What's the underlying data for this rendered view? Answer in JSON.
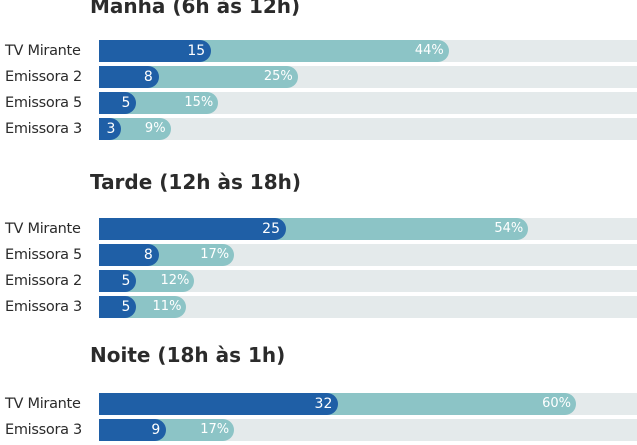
{
  "source_note": "",
  "chart_data": [
    {
      "type": "bar",
      "orientation": "horizontal",
      "title": "Manhã (6h às 12h)",
      "categories": [
        "TV Mirante",
        "Emissora 2",
        "Emissora 5",
        "Emissora 3"
      ],
      "series": [
        {
          "values": [
            15,
            8,
            5,
            3
          ]
        },
        {
          "values": [
            44,
            25,
            15,
            9
          ],
          "unit": "%"
        }
      ],
      "colors": {
        "value_bar": "#1f5fa6",
        "percent_bar": "#8cc4c6",
        "track": "#e4eaeb"
      }
    },
    {
      "type": "bar",
      "orientation": "horizontal",
      "title": "Tarde (12h às 18h)",
      "categories": [
        "TV Mirante",
        "Emissora 5",
        "Emissora 2",
        "Emissora 3"
      ],
      "series": [
        {
          "values": [
            25,
            8,
            5,
            5
          ]
        },
        {
          "values": [
            54,
            17,
            12,
            11
          ],
          "unit": "%"
        }
      ],
      "colors": {
        "value_bar": "#1f5fa6",
        "percent_bar": "#8cc4c6",
        "track": "#e4eaeb"
      }
    },
    {
      "type": "bar",
      "orientation": "horizontal",
      "title": "Noite (18h às 1h)",
      "categories": [
        "TV Mirante",
        "Emissora 3"
      ],
      "series": [
        {
          "values": [
            32,
            9
          ]
        },
        {
          "values": [
            60,
            17
          ],
          "unit": "%"
        }
      ],
      "colors": {
        "value_bar": "#1f5fa6",
        "percent_bar": "#8cc4c6",
        "track": "#e4eaeb"
      }
    }
  ]
}
